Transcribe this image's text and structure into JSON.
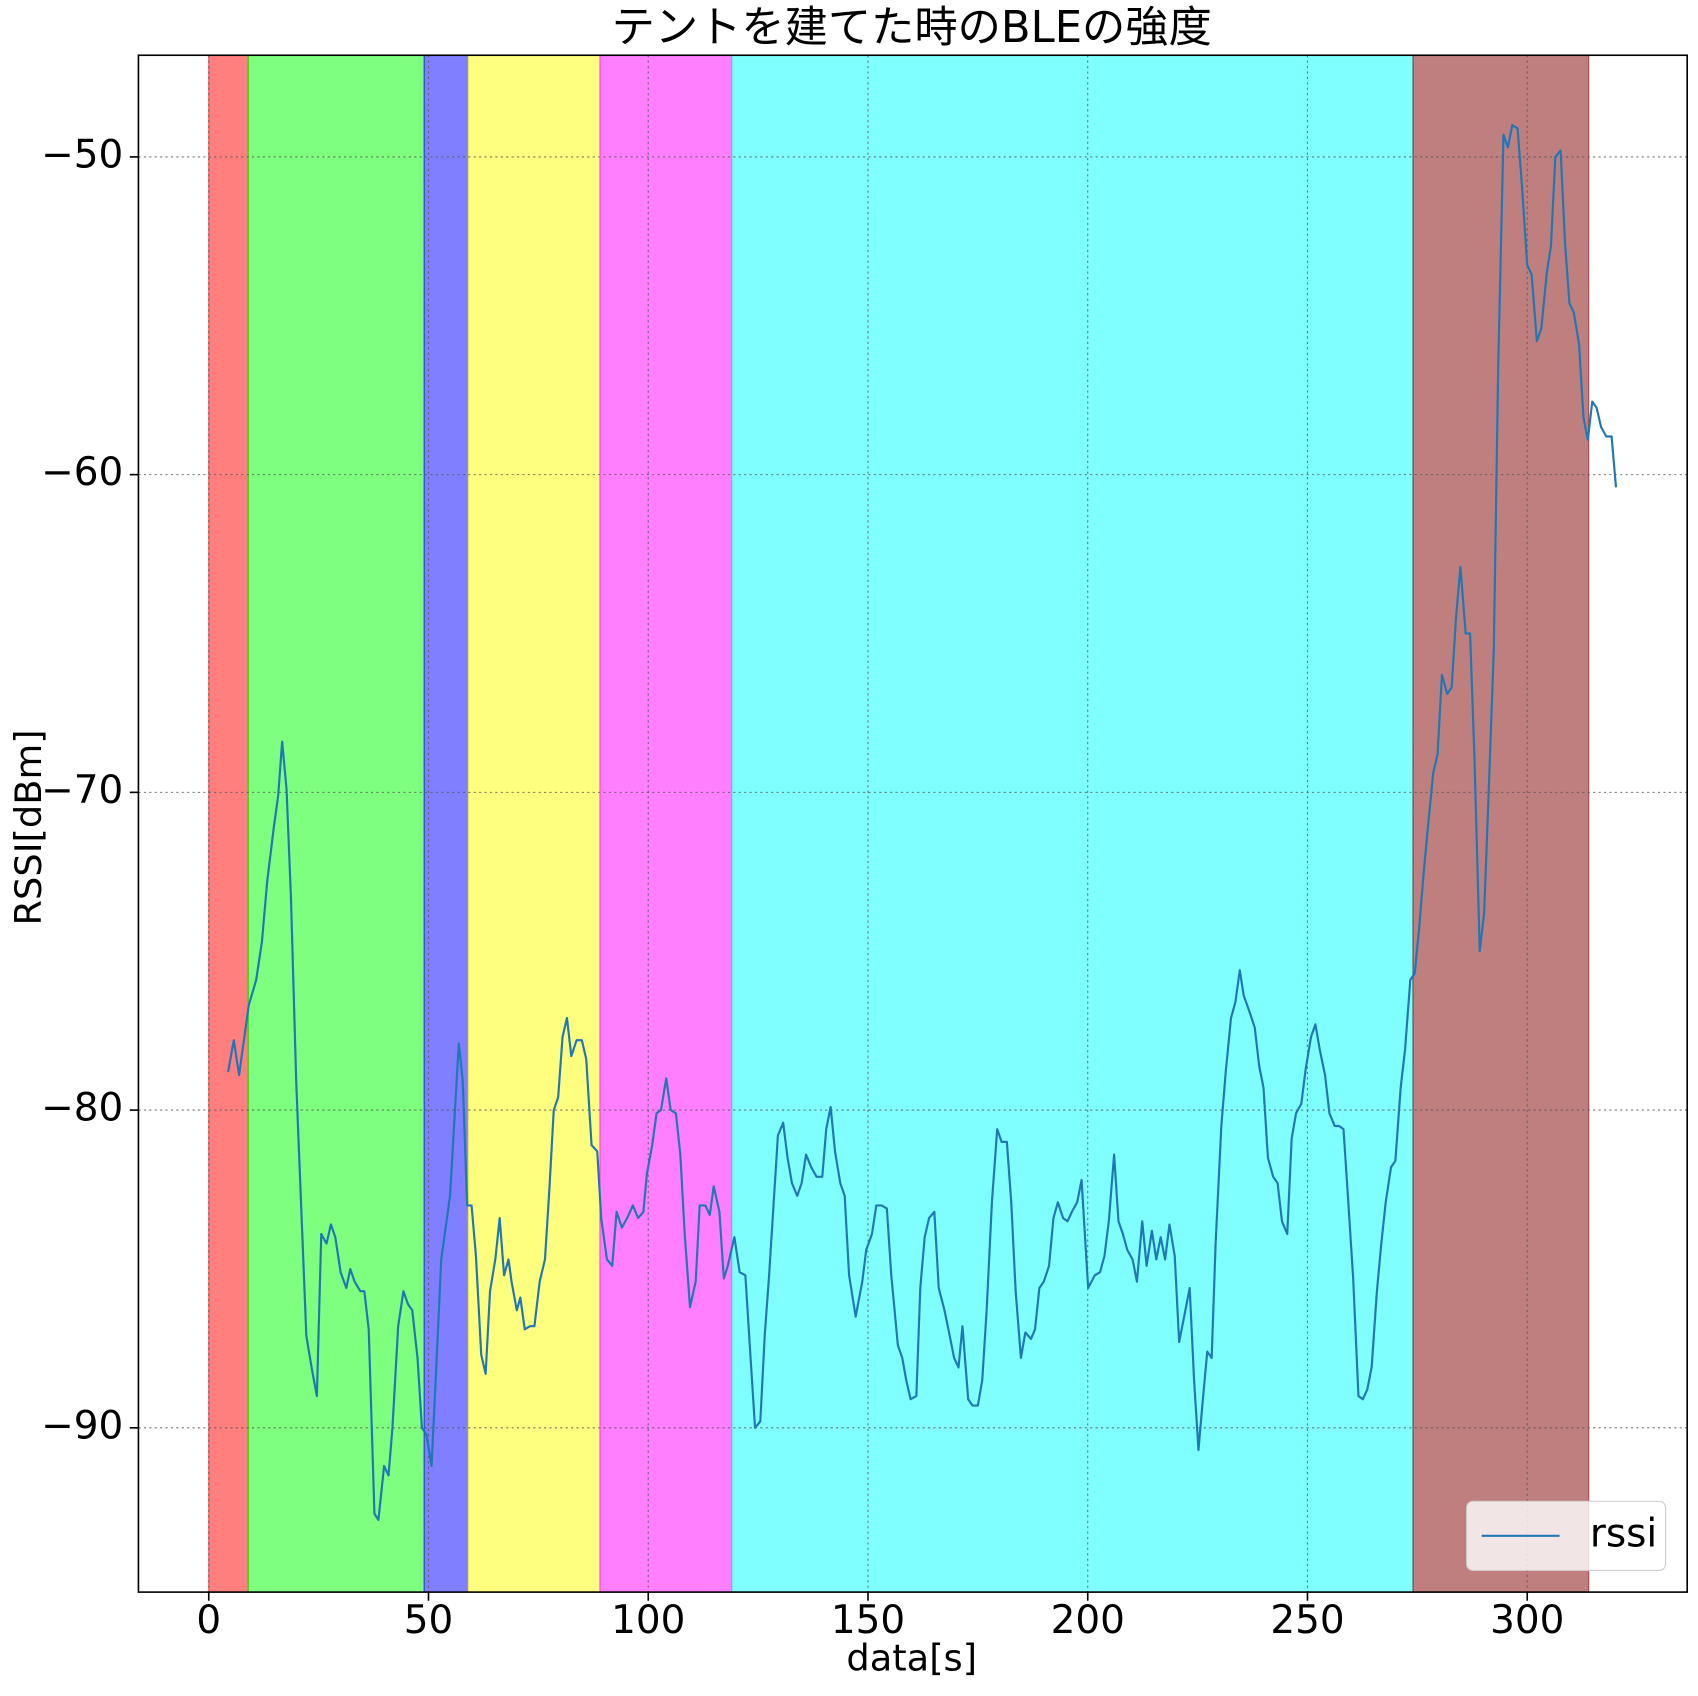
{
  "chart_data": {
    "type": "line",
    "title": "テントを建てた時のBLEの強度",
    "xlabel": "data[s]",
    "ylabel": "RSSI[dBm]",
    "xlim": [
      -16,
      336.4
    ],
    "ylim": [
      -95.17,
      -46.8
    ],
    "xticks": [
      0,
      50,
      100,
      150,
      200,
      250,
      300
    ],
    "yticks": [
      {
        "value": -90,
        "label": "−90"
      },
      {
        "value": -80,
        "label": "−80"
      },
      {
        "value": -70,
        "label": "−70"
      },
      {
        "value": -60,
        "label": "−60"
      },
      {
        "value": -50,
        "label": "−50"
      }
    ],
    "grid": true,
    "legend": "lower right",
    "spans": [
      {
        "start": 0,
        "end": 9,
        "color": "#ff0000"
      },
      {
        "start": 9,
        "end": 49,
        "color": "#00ff00"
      },
      {
        "start": 49,
        "end": 59,
        "color": "#0000ff"
      },
      {
        "start": 59,
        "end": 89,
        "color": "#ffff00"
      },
      {
        "start": 89,
        "end": 119,
        "color": "#ff00ff"
      },
      {
        "start": 119,
        "end": 274,
        "color": "#00ffff"
      },
      {
        "start": 274,
        "end": 314,
        "color": "#800000"
      }
    ],
    "x": [
      4.4,
      5.7,
      6.9,
      9.1,
      10.8,
      12.1,
      13.3,
      14.8,
      15.8,
      16.7,
      17.7,
      18.7,
      19.9,
      22.2,
      23.4,
      24.6,
      25.6,
      26.8,
      27.8,
      28.8,
      30.0,
      31.3,
      32.2,
      33.2,
      34.5,
      35.4,
      36.4,
      37.7,
      38.6,
      39.9,
      40.9,
      41.8,
      43.1,
      44.3,
      45.3,
      46.3,
      47.5,
      48.5,
      49.5,
      50.7,
      51.7,
      52.9,
      53.9,
      54.9,
      56.9,
      57.8,
      58.8,
      59.8,
      60.8,
      62.0,
      63.0,
      64.0,
      65.2,
      66.2,
      67.2,
      68.2,
      68.9,
      70.1,
      70.9,
      71.9,
      73.1,
      74.1,
      75.3,
      76.5,
      77.5,
      78.5,
      79.5,
      80.5,
      81.5,
      82.5,
      83.7,
      84.9,
      85.9,
      87.1,
      88.4,
      89.3,
      90.6,
      91.8,
      92.8,
      94.0,
      95.2,
      96.5,
      97.7,
      98.9,
      99.7,
      100.9,
      101.9,
      102.9,
      104.1,
      105.1,
      106.3,
      107.3,
      108.3,
      109.5,
      110.8,
      111.7,
      113.0,
      114.0,
      114.9,
      116.2,
      117.2,
      118.1,
      119.6,
      120.8,
      122.1,
      123.1,
      124.3,
      125.5,
      126.5,
      127.5,
      128.5,
      129.5,
      130.7,
      131.7,
      132.7,
      133.9,
      134.9,
      135.9,
      137.1,
      138.3,
      139.6,
      140.5,
      141.5,
      142.5,
      143.7,
      144.7,
      145.7,
      147.2,
      148.7,
      149.6,
      150.9,
      151.9,
      153.1,
      154.3,
      155.3,
      156.8,
      157.8,
      158.7,
      159.7,
      161.0,
      161.9,
      162.9,
      163.9,
      165.1,
      166.1,
      167.4,
      168.3,
      169.6,
      170.6,
      171.5,
      172.8,
      173.8,
      175.0,
      176.0,
      177.0,
      178.2,
      179.4,
      180.4,
      181.6,
      182.6,
      183.6,
      184.8,
      185.8,
      187.1,
      188.0,
      189.0,
      190.0,
      191.2,
      192.2,
      193.2,
      194.4,
      195.4,
      196.4,
      197.6,
      198.6,
      200.1,
      201.6,
      202.8,
      203.8,
      204.8,
      206.0,
      207.0,
      208.0,
      209.0,
      210.2,
      211.2,
      212.4,
      213.4,
      214.6,
      215.6,
      216.6,
      217.6,
      218.6,
      219.8,
      220.8,
      221.8,
      223.2,
      224.2,
      225.2,
      226.2,
      227.2,
      228.2,
      229.1,
      230.4,
      231.4,
      232.6,
      233.6,
      234.6,
      235.5,
      236.8,
      238.0,
      239.0,
      240.0,
      241.0,
      242.2,
      243.2,
      244.2,
      245.4,
      246.4,
      247.4,
      248.6,
      249.6,
      250.8,
      251.8,
      252.8,
      254.0,
      255.0,
      256.2,
      257.2,
      258.2,
      259.2,
      260.4,
      261.6,
      262.6,
      263.6,
      264.6,
      265.8,
      266.8,
      267.8,
      269.0,
      270.0,
      271.2,
      272.2,
      273.4,
      274.4,
      275.4,
      276.4,
      277.4,
      278.6,
      279.6,
      280.6,
      281.8,
      282.8,
      283.8,
      284.8,
      286.0,
      287.0,
      288.0,
      289.2,
      290.2,
      291.2,
      292.4,
      293.4,
      294.6,
      295.6,
      296.6,
      297.8,
      298.8,
      300.0,
      301.0,
      302.2,
      303.2,
      304.5,
      305.4,
      306.4,
      307.6,
      308.6,
      309.6,
      310.6,
      311.8,
      312.8,
      313.8,
      314.8,
      315.8,
      316.8,
      318.0,
      319.2,
      320.2
    ],
    "series": [
      {
        "name": "rssi",
        "color": "#1f77b4",
        "values": [
          -78.8,
          -77.8,
          -78.9,
          -76.7,
          -75.9,
          -74.7,
          -72.8,
          -71.1,
          -70.1,
          -68.4,
          -69.9,
          -73.3,
          -79.1,
          -87.1,
          -88.1,
          -89.0,
          -83.9,
          -84.2,
          -83.6,
          -84.0,
          -85.1,
          -85.6,
          -85.0,
          -85.4,
          -85.7,
          -85.7,
          -86.9,
          -92.7,
          -92.9,
          -91.2,
          -91.5,
          -90.0,
          -86.8,
          -85.7,
          -86.1,
          -86.3,
          -87.8,
          -90.0,
          -90.2,
          -91.2,
          -88.3,
          -84.7,
          -83.7,
          -82.7,
          -77.9,
          -79.1,
          -83.0,
          -83.0,
          -84.6,
          -87.7,
          -88.3,
          -85.7,
          -84.7,
          -83.4,
          -85.2,
          -84.7,
          -85.4,
          -86.3,
          -85.9,
          -86.9,
          -86.8,
          -86.8,
          -85.4,
          -84.7,
          -82.5,
          -80.0,
          -79.6,
          -77.7,
          -77.1,
          -78.3,
          -77.8,
          -77.8,
          -78.4,
          -81.1,
          -81.3,
          -83.4,
          -84.7,
          -84.9,
          -83.2,
          -83.7,
          -83.4,
          -83.0,
          -83.4,
          -83.2,
          -82.0,
          -81.1,
          -80.1,
          -80.0,
          -79.0,
          -80.0,
          -80.1,
          -81.4,
          -83.9,
          -86.2,
          -85.4,
          -83.0,
          -83.0,
          -83.3,
          -82.4,
          -83.2,
          -85.3,
          -84.9,
          -84.0,
          -85.1,
          -85.2,
          -87.4,
          -90.0,
          -89.8,
          -87.1,
          -85.2,
          -83.0,
          -80.8,
          -80.4,
          -81.5,
          -82.3,
          -82.7,
          -82.3,
          -81.4,
          -81.8,
          -82.1,
          -82.1,
          -80.6,
          -79.9,
          -81.3,
          -82.3,
          -82.7,
          -85.2,
          -86.5,
          -85.4,
          -84.4,
          -83.9,
          -83.0,
          -83.0,
          -83.1,
          -85.2,
          -87.4,
          -87.8,
          -88.5,
          -89.1,
          -89.0,
          -85.6,
          -84.0,
          -83.4,
          -83.2,
          -85.6,
          -86.3,
          -86.9,
          -87.8,
          -88.1,
          -86.8,
          -89.1,
          -89.3,
          -89.3,
          -88.5,
          -86.3,
          -82.9,
          -80.6,
          -81.0,
          -81.0,
          -82.9,
          -85.7,
          -87.8,
          -87.0,
          -87.2,
          -86.9,
          -85.6,
          -85.4,
          -84.9,
          -83.4,
          -82.9,
          -83.4,
          -83.5,
          -83.2,
          -82.9,
          -82.2,
          -85.6,
          -85.2,
          -85.1,
          -84.6,
          -83.5,
          -81.4,
          -83.5,
          -83.9,
          -84.4,
          -84.7,
          -85.4,
          -83.5,
          -84.9,
          -83.8,
          -84.7,
          -84.0,
          -84.7,
          -83.6,
          -84.6,
          -87.3,
          -86.6,
          -85.6,
          -88.5,
          -90.7,
          -89.1,
          -87.6,
          -87.8,
          -84.2,
          -80.5,
          -78.8,
          -77.1,
          -76.6,
          -75.6,
          -76.4,
          -76.9,
          -77.4,
          -78.6,
          -79.3,
          -81.5,
          -82.1,
          -82.3,
          -83.5,
          -83.9,
          -80.9,
          -80.1,
          -79.8,
          -78.7,
          -77.7,
          -77.3,
          -78.1,
          -78.9,
          -80.1,
          -80.5,
          -80.5,
          -80.6,
          -82.7,
          -85.3,
          -89.0,
          -89.1,
          -88.8,
          -88.1,
          -85.7,
          -84.2,
          -82.9,
          -81.8,
          -81.6,
          -79.3,
          -78.1,
          -75.9,
          -75.7,
          -74.3,
          -72.6,
          -71.1,
          -69.4,
          -68.8,
          -66.3,
          -66.9,
          -66.7,
          -64.5,
          -62.9,
          -65.0,
          -65.0,
          -68.9,
          -75.0,
          -73.8,
          -70.1,
          -65.5,
          -56.6,
          -49.3,
          -49.7,
          -49.0,
          -49.1,
          -50.9,
          -53.4,
          -53.7,
          -55.8,
          -55.4,
          -53.6,
          -52.8,
          -50.0,
          -49.8,
          -52.7,
          -54.6,
          -54.9,
          -55.9,
          -58.2,
          -58.9,
          -57.7,
          -57.9,
          -58.5,
          -58.8,
          -58.8,
          -60.4
        ]
      }
    ]
  }
}
